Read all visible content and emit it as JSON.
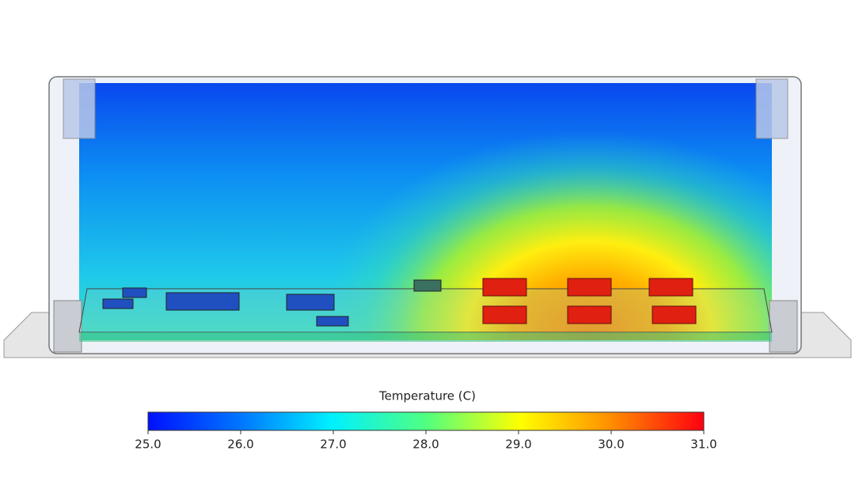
{
  "colorbar": {
    "title": "Temperature (C)",
    "lim": [
      25,
      31
    ],
    "ticks": [
      {
        "value": 25,
        "label": "25.0"
      },
      {
        "value": 26,
        "label": "26.0"
      },
      {
        "value": 27,
        "label": "27.0"
      },
      {
        "value": 28,
        "label": "28.0"
      },
      {
        "value": 29,
        "label": "29.0"
      },
      {
        "value": 30,
        "label": "30.0"
      },
      {
        "value": 31,
        "label": "31.0"
      }
    ]
  }
}
